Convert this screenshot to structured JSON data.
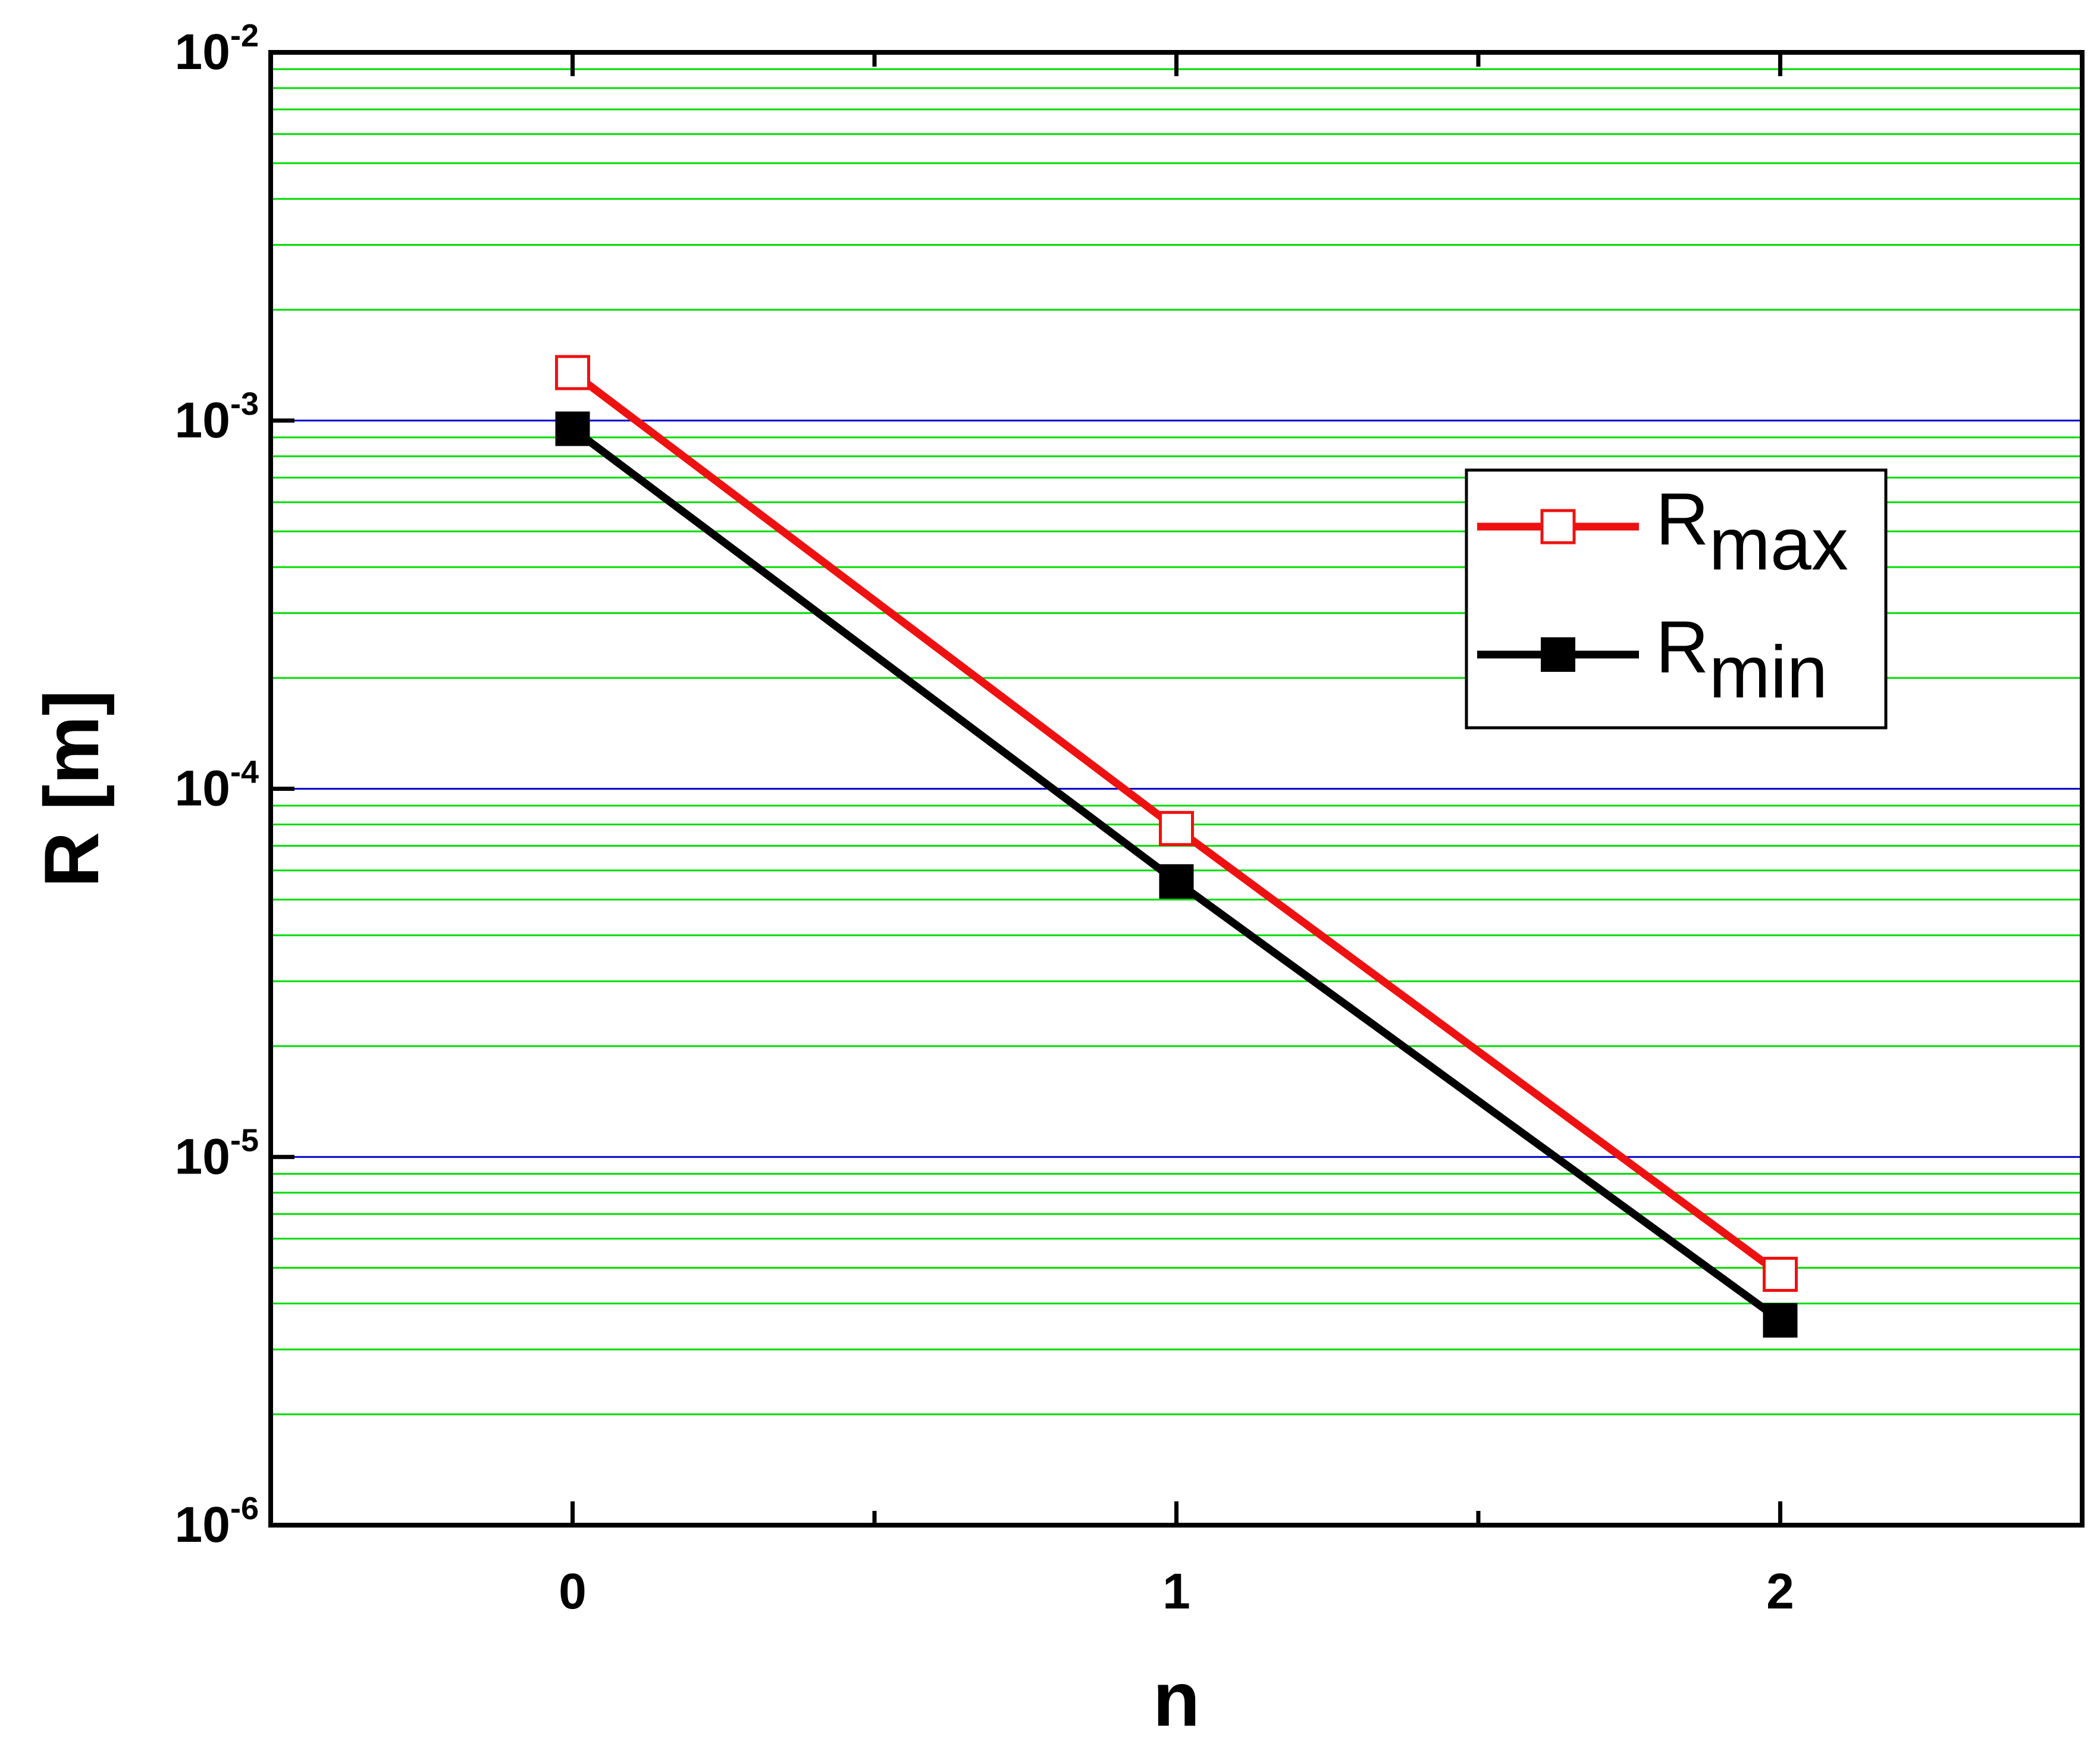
{
  "chart_data": {
    "type": "line",
    "xlabel": "n",
    "ylabel": "R [m]",
    "xlim": [
      -0.5,
      2.5
    ],
    "ylim": [
      1e-06,
      0.01
    ],
    "yscale": "log",
    "x_ticks": [
      "0",
      "1",
      "2"
    ],
    "y_ticks": [
      {
        "base": "10",
        "exp": "-6",
        "value": 1e-06
      },
      {
        "base": "10",
        "exp": "-5",
        "value": 1e-05
      },
      {
        "base": "10",
        "exp": "-4",
        "value": 0.0001
      },
      {
        "base": "10",
        "exp": "-3",
        "value": 0.001
      },
      {
        "base": "10",
        "exp": "-2",
        "value": 0.01
      }
    ],
    "grid": {
      "major": true,
      "minor": true,
      "major_color": "#0000cc",
      "minor_color": "#00dd00"
    },
    "legend_position": "upper-right",
    "series": [
      {
        "name_main": "R",
        "name_sub": "max",
        "color": "#ee1111",
        "marker": "open-square",
        "x": [
          0,
          1,
          2
        ],
        "y": [
          0.00135,
          7.8e-05,
          4.8e-06
        ]
      },
      {
        "name_main": "R",
        "name_sub": "min",
        "color": "#000000",
        "marker": "filled-square",
        "x": [
          0,
          1,
          2
        ],
        "y": [
          0.00095,
          5.6e-05,
          3.6e-06
        ]
      }
    ]
  }
}
